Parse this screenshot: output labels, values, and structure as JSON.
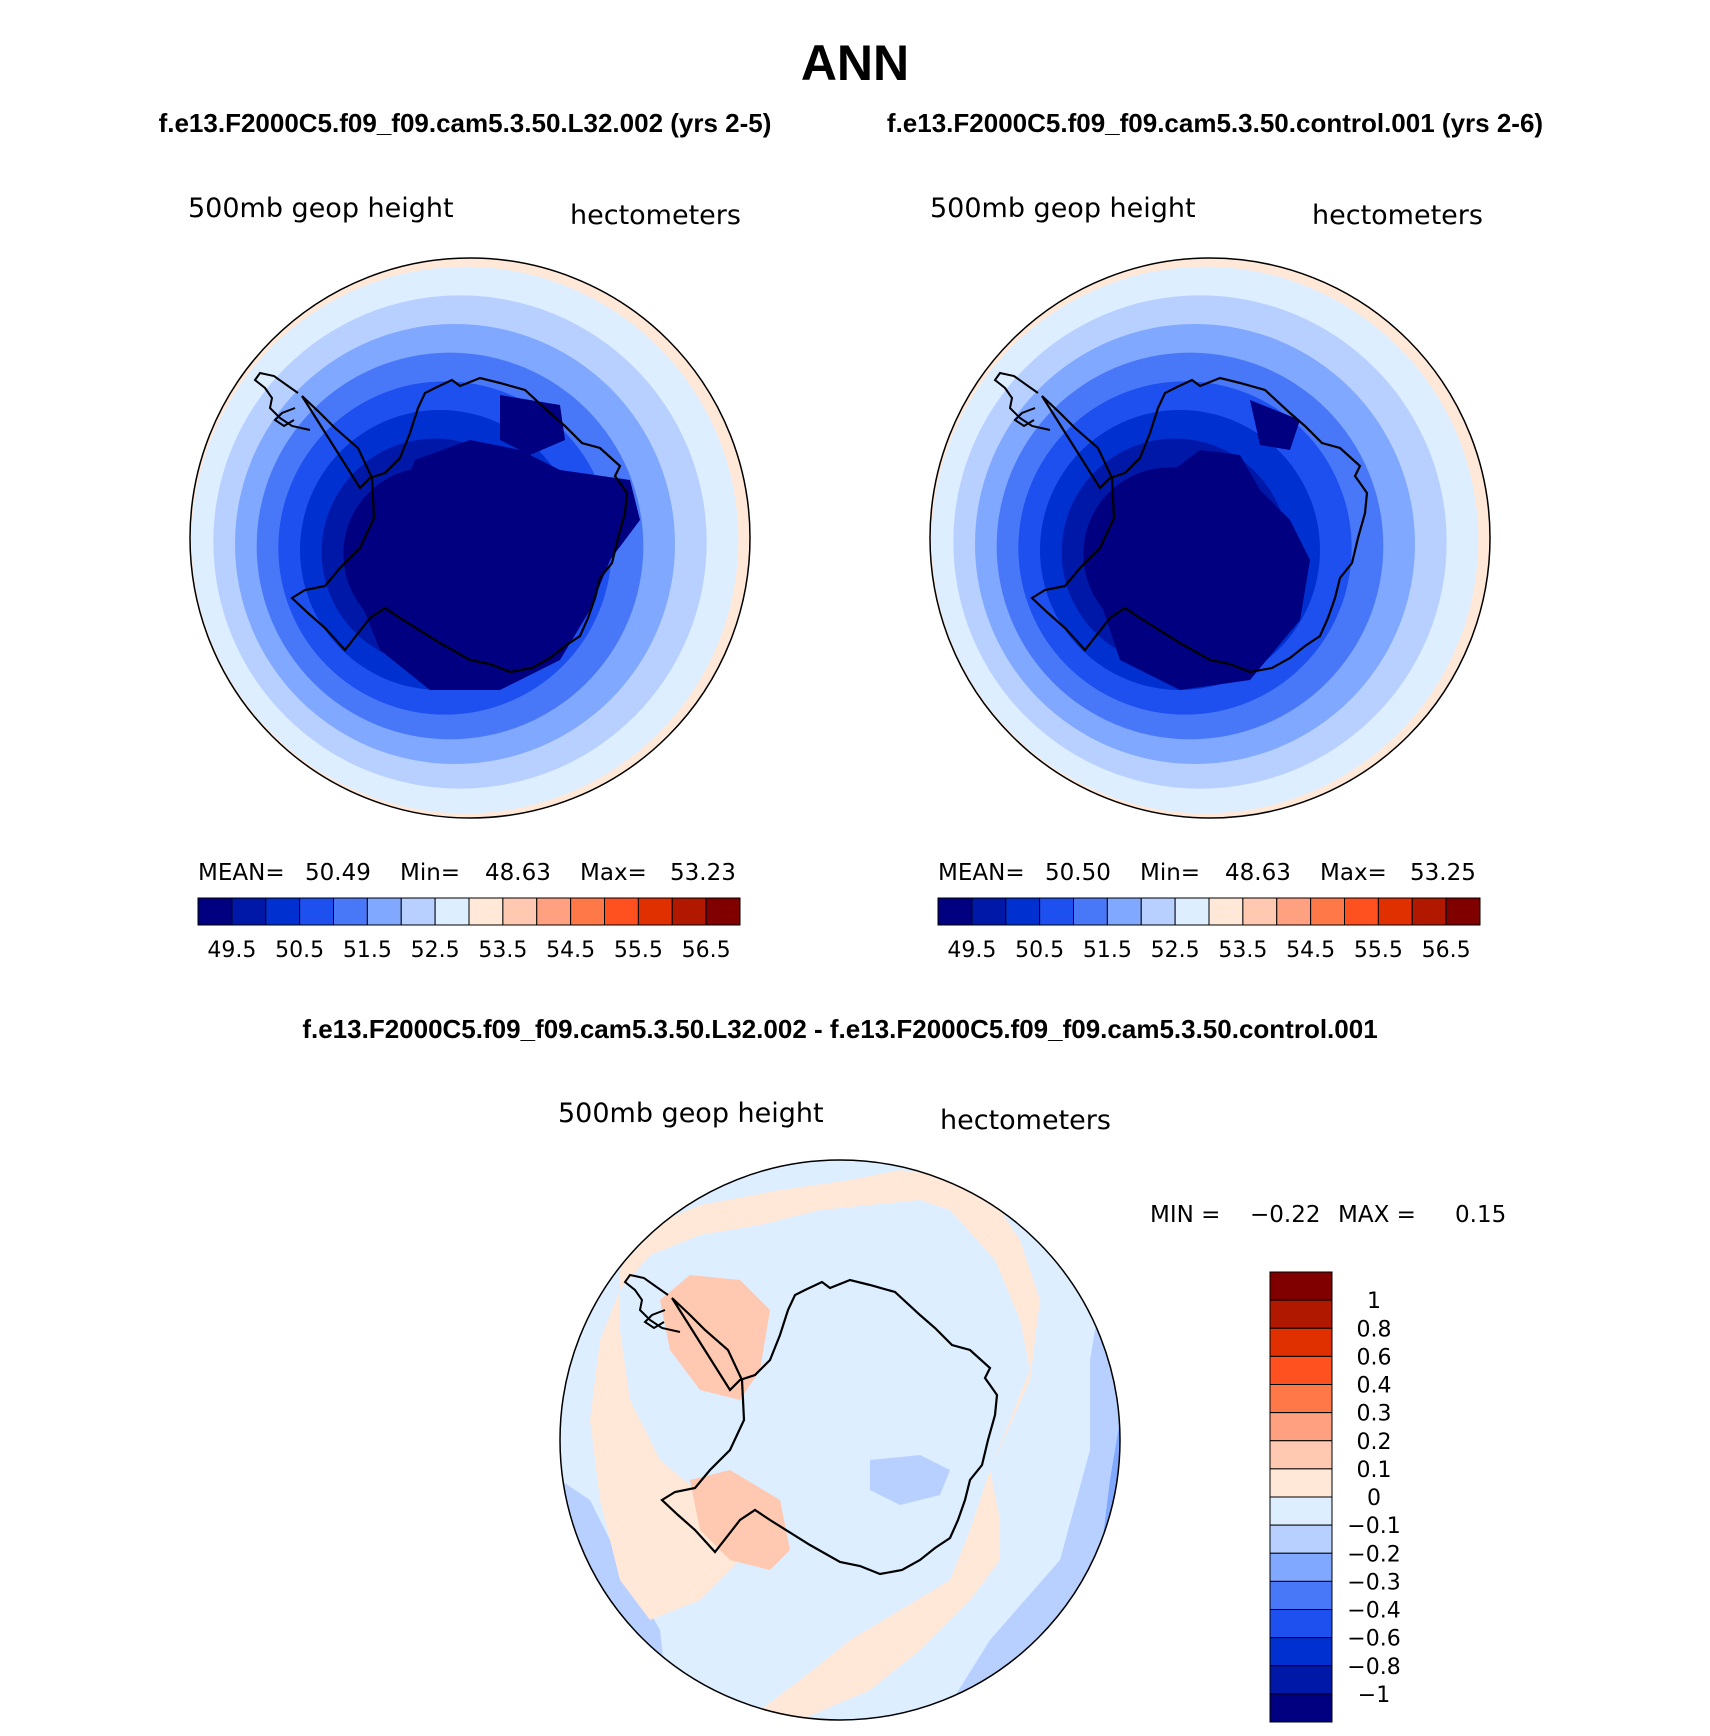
{
  "figure": {
    "season": "ANN",
    "panel_titles": {
      "left": "f.e13.F2000C5.f09_f09.cam5.3.50.L32.002 (yrs 2-5)",
      "right": "f.e13.F2000C5.f09_f09.cam5.3.50.control.001 (yrs 2-6)",
      "diff": "f.e13.F2000C5.f09_f09.cam5.3.50.L32.002 - f.e13.F2000C5.f09_f09.cam5.3.50.control.001"
    },
    "variable": "500mb  geop  height",
    "units": "hectometers"
  },
  "stats": {
    "left": {
      "mean_label": "MEAN=",
      "mean": "50.49",
      "min_label": "Min=",
      "min": "48.63",
      "max_label": "Max=",
      "max": "53.23"
    },
    "right": {
      "mean_label": "MEAN=",
      "mean": "50.50",
      "min_label": "Min=",
      "min": "48.63",
      "max_label": "Max=",
      "max": "53.25"
    },
    "diff": {
      "min_label": "MIN =",
      "min": "−0.22",
      "max_label": "MAX =",
      "max": "0.15"
    }
  },
  "colorbars": {
    "abs": {
      "colors": [
        "#000080",
        "#0018a8",
        "#0030d0",
        "#1e50f0",
        "#4878f8",
        "#80a8ff",
        "#b8d0ff",
        "#dceeff",
        "#ffe8d8",
        "#ffc8b0",
        "#ffa080",
        "#ff7848",
        "#ff5020",
        "#e03000",
        "#b01800",
        "#800000"
      ],
      "tick_labels": [
        "49.5",
        "50.5",
        "51.5",
        "52.5",
        "53.5",
        "54.5",
        "55.5",
        "56.5"
      ]
    },
    "diff": {
      "colors": [
        "#000080",
        "#0018a8",
        "#0030d0",
        "#1e50f0",
        "#4878f8",
        "#80a8ff",
        "#b8d0ff",
        "#dceeff",
        "#ffe8d8",
        "#ffc8b0",
        "#ffa080",
        "#ff7848",
        "#ff5020",
        "#e03000",
        "#b01800",
        "#800000"
      ],
      "tick_labels": [
        "1",
        "0.8",
        "0.6",
        "0.4",
        "0.3",
        "0.2",
        "0.1",
        "0",
        "−0.1",
        "−0.2",
        "−0.3",
        "−0.4",
        "−0.6",
        "−0.8",
        "−1"
      ]
    }
  },
  "map_colors": {
    "abs_rings": [
      "#ffe8d8",
      "#dceeff",
      "#b8d0ff",
      "#80a8ff",
      "#4878f8",
      "#1e50f0",
      "#0030d0",
      "#0018a8",
      "#000080"
    ],
    "diff": {
      "light_blue": "#dceeff",
      "blue": "#b8d0ff",
      "mid_blue": "#80a8ff",
      "peach": "#ffe8d8",
      "salmon": "#ffc8b0"
    }
  }
}
